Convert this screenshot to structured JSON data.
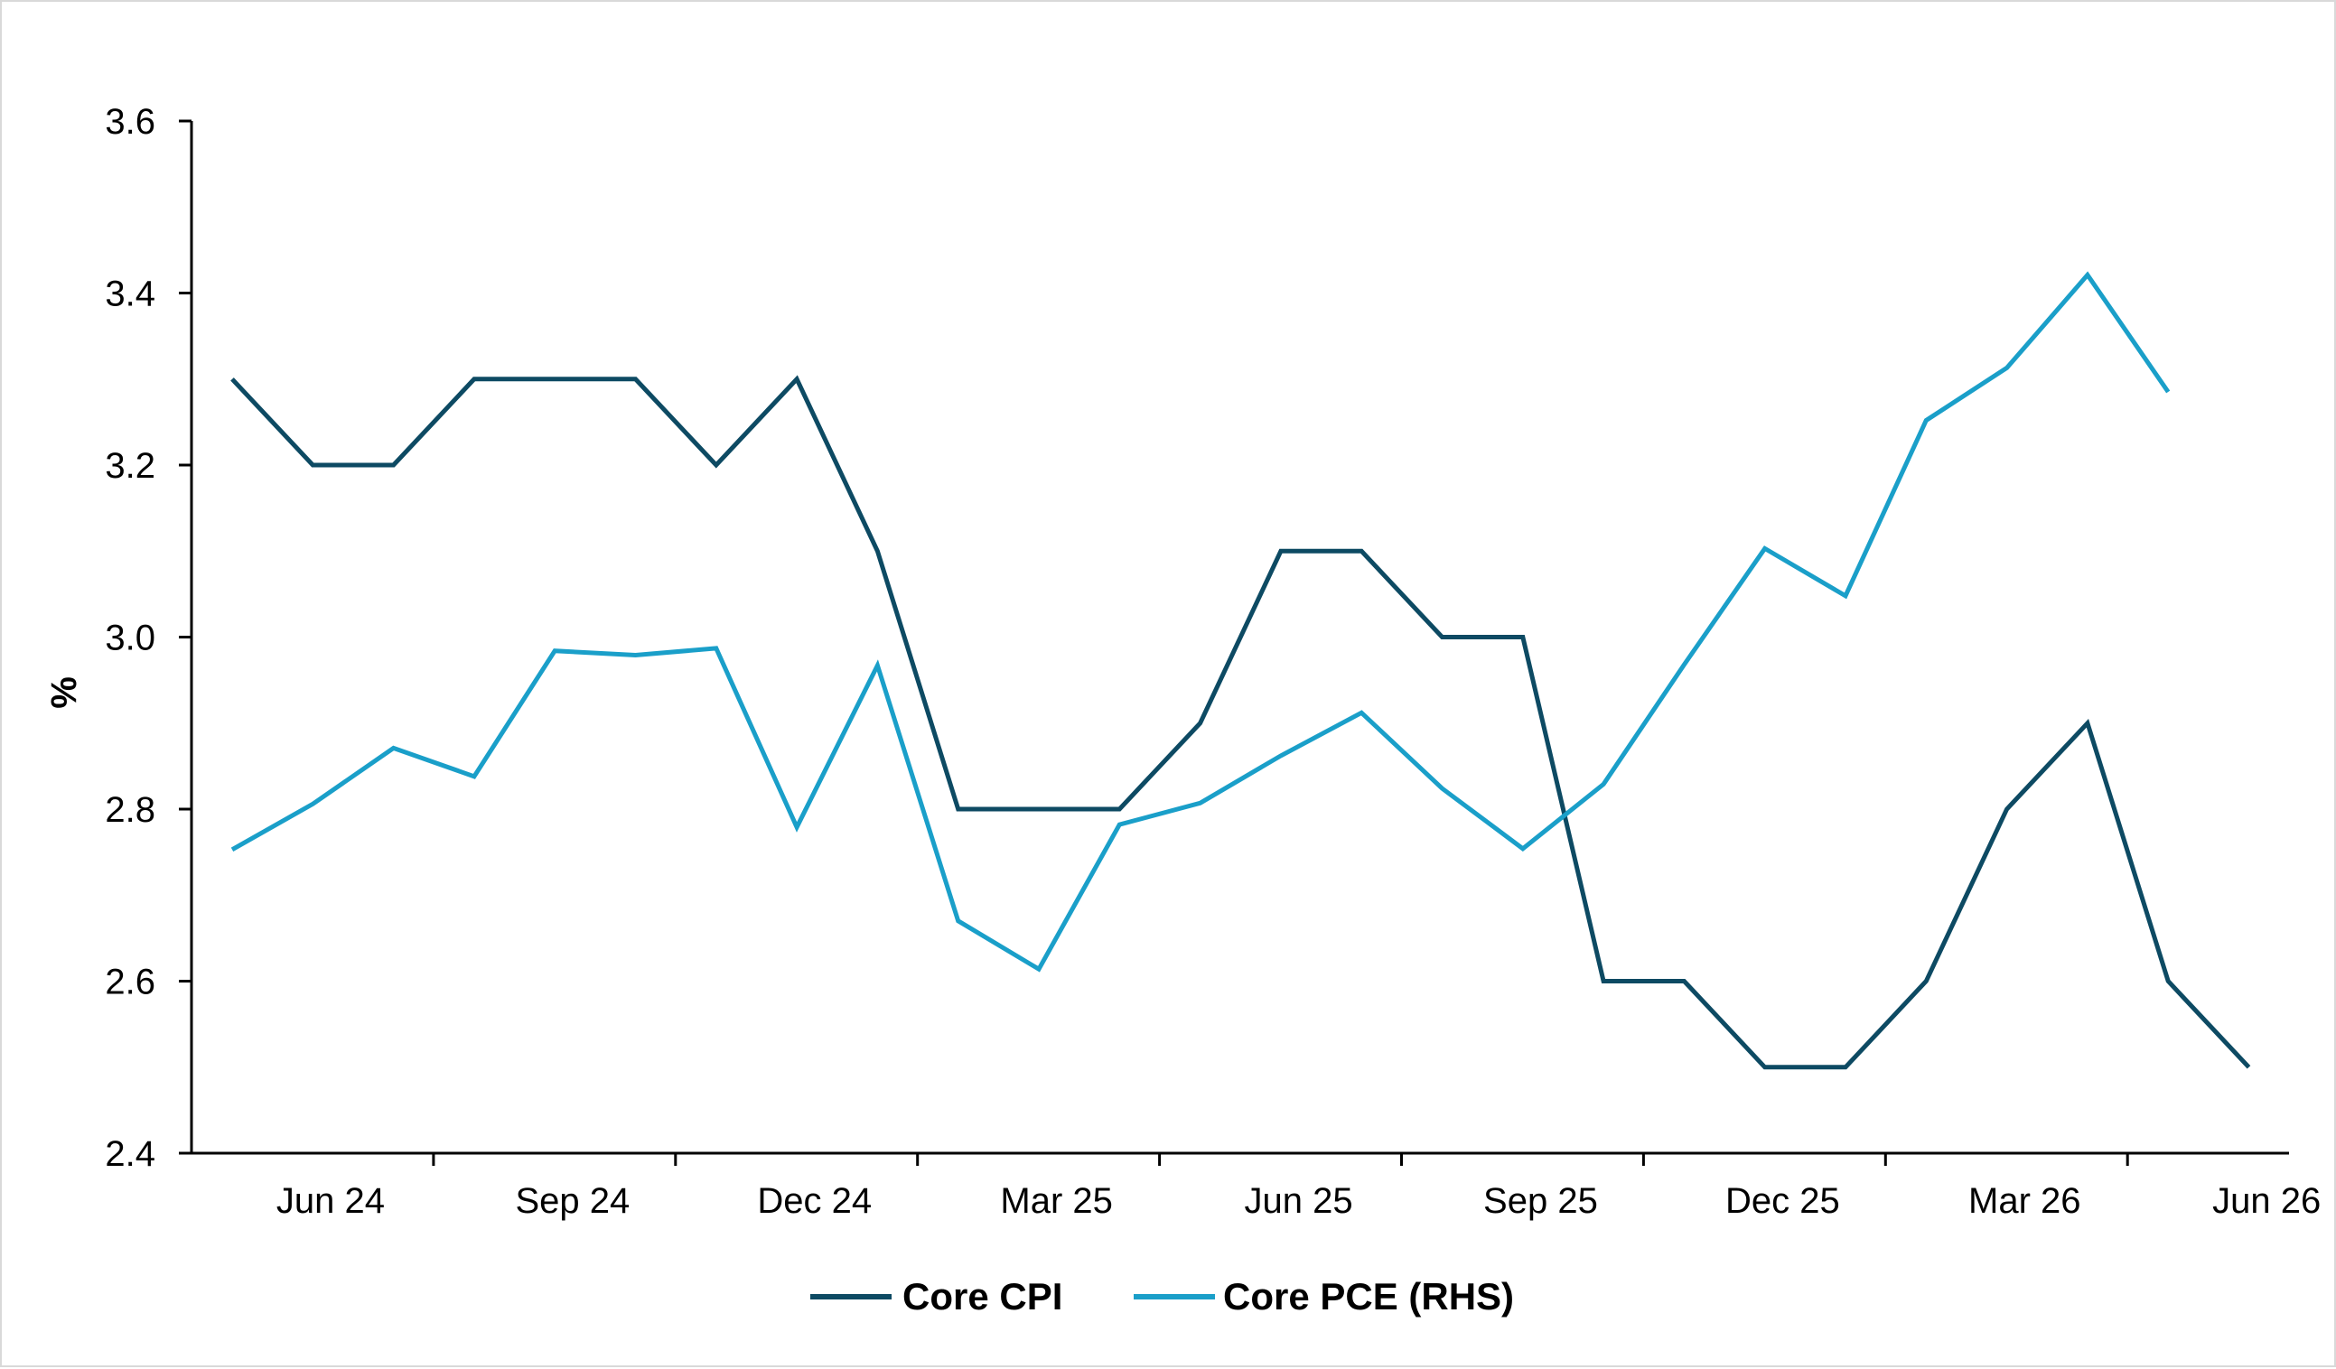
{
  "chart_data": {
    "type": "line",
    "title": "",
    "ylabel": "%",
    "xlabel": "",
    "ylim": [
      2.4,
      3.6
    ],
    "yticks": [
      "2.4",
      "2.6",
      "2.8",
      "3.0",
      "3.2",
      "3.4",
      "3.6"
    ],
    "x_tick_labels": [
      "Jun 24",
      "Sep 24",
      "Dec 24",
      "Mar 25",
      "Jun 25",
      "Sep 25",
      "Dec 25",
      "Mar 26",
      "Jun 26"
    ],
    "legend_position": "bottom",
    "grid": false,
    "series": [
      {
        "name": "Core CPI",
        "color": "#0d4a63",
        "start_index": 0,
        "values": [
          3.3,
          3.2,
          3.2,
          3.3,
          3.3,
          3.3,
          3.2,
          3.3,
          3.1,
          2.8,
          2.8,
          2.8,
          2.9,
          3.1,
          3.1,
          3.0,
          3.0,
          2.6,
          2.6,
          2.5,
          2.5,
          2.6,
          2.8,
          2.9,
          2.6,
          2.5
        ]
      },
      {
        "name": "Core PCE (RHS)",
        "color": "#1a9fc9",
        "start_index": 0,
        "values": [
          2.753,
          2.806,
          2.871,
          2.838,
          2.984,
          2.979,
          2.987,
          2.779,
          2.967,
          2.67,
          2.614,
          2.782,
          2.807,
          2.862,
          2.912,
          2.824,
          2.754,
          2.829,
          2.968,
          3.103,
          3.048,
          3.252,
          3.313,
          3.421,
          3.285
        ]
      }
    ]
  }
}
